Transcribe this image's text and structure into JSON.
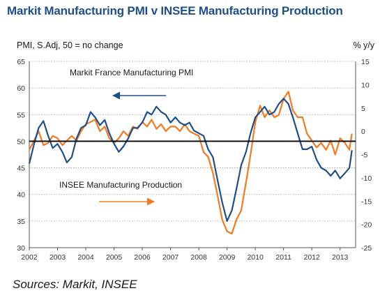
{
  "title": "Markit Manufacturing PMI v INSEE Manufacturing Production",
  "left_unit": "PMI, S.Adj, 50 = no change",
  "right_unit": "% y/y",
  "source": "Sources: Markit, INSEE",
  "colors": {
    "pmi": "#1f4e8c",
    "production": "#f47a20",
    "title": "#1f4e8c"
  },
  "chart_data": {
    "type": "line",
    "x_ticks": [
      "2002",
      "2003",
      "2004",
      "2005",
      "2006",
      "2007",
      "2008",
      "2009",
      "2010",
      "2011",
      "2012",
      "2013"
    ],
    "y_left": {
      "min": 30,
      "max": 65,
      "ticks": [
        30,
        35,
        40,
        45,
        50,
        55,
        60,
        65
      ]
    },
    "y_right": {
      "min": -25,
      "max": 15,
      "ticks": [
        -25,
        -20,
        -15,
        -10,
        -5,
        0,
        5,
        10,
        15
      ]
    },
    "reference_line": 50,
    "grid": "dotted horizontal",
    "annotations": [
      {
        "text": "Markit France Manufacturing PMI",
        "series": "pmi",
        "arrow": "left"
      },
      {
        "text": "INSEE Manufacturing Production",
        "series": "production",
        "arrow": "right"
      }
    ],
    "series": [
      {
        "id": "pmi",
        "axis": "left",
        "x": [
          2002.0,
          2002.17,
          2002.33,
          2002.5,
          2002.67,
          2002.83,
          2003.0,
          2003.17,
          2003.33,
          2003.5,
          2003.67,
          2003.83,
          2004.0,
          2004.17,
          2004.33,
          2004.5,
          2004.67,
          2004.83,
          2005.0,
          2005.17,
          2005.33,
          2005.5,
          2005.67,
          2005.83,
          2006.0,
          2006.17,
          2006.33,
          2006.5,
          2006.67,
          2006.83,
          2007.0,
          2007.17,
          2007.33,
          2007.5,
          2007.67,
          2007.83,
          2008.0,
          2008.17,
          2008.33,
          2008.5,
          2008.67,
          2008.83,
          2009.0,
          2009.17,
          2009.33,
          2009.5,
          2009.67,
          2009.83,
          2010.0,
          2010.17,
          2010.33,
          2010.5,
          2010.67,
          2010.83,
          2011.0,
          2011.17,
          2011.33,
          2011.5,
          2011.67,
          2011.83,
          2012.0,
          2012.17,
          2012.33,
          2012.5,
          2012.67,
          2012.83,
          2013.0,
          2013.17,
          2013.33,
          2013.42
        ],
        "values": [
          45.8,
          49.5,
          52.5,
          53.8,
          51.0,
          48.7,
          49.5,
          48.0,
          46.0,
          47.0,
          50.5,
          52.5,
          53.0,
          55.5,
          54.5,
          53.0,
          54.0,
          51.5,
          49.5,
          48.0,
          49.0,
          50.5,
          52.5,
          52.5,
          53.5,
          55.5,
          55.0,
          56.5,
          55.5,
          55.0,
          53.5,
          54.5,
          53.5,
          53.0,
          53.5,
          52.0,
          51.5,
          51.0,
          48.5,
          47.0,
          42.5,
          38.5,
          35.0,
          37.0,
          41.0,
          45.5,
          48.0,
          51.5,
          54.5,
          55.5,
          56.5,
          55.0,
          55.5,
          57.0,
          58.0,
          57.0,
          54.5,
          51.5,
          48.5,
          48.5,
          49.0,
          46.5,
          45.0,
          44.5,
          43.5,
          44.5,
          43.0,
          44.0,
          45.0,
          48.3
        ]
      },
      {
        "id": "production",
        "axis": "right",
        "x": [
          2002.0,
          2002.17,
          2002.33,
          2002.5,
          2002.67,
          2002.83,
          2003.0,
          2003.17,
          2003.33,
          2003.5,
          2003.67,
          2003.83,
          2004.0,
          2004.17,
          2004.33,
          2004.5,
          2004.67,
          2004.83,
          2005.0,
          2005.17,
          2005.33,
          2005.5,
          2005.67,
          2005.83,
          2006.0,
          2006.17,
          2006.33,
          2006.5,
          2006.67,
          2006.83,
          2007.0,
          2007.17,
          2007.33,
          2007.5,
          2007.67,
          2007.83,
          2008.0,
          2008.17,
          2008.33,
          2008.5,
          2008.67,
          2008.83,
          2009.0,
          2009.17,
          2009.33,
          2009.5,
          2009.67,
          2009.83,
          2010.0,
          2010.17,
          2010.33,
          2010.5,
          2010.67,
          2010.83,
          2011.0,
          2011.17,
          2011.33,
          2011.5,
          2011.67,
          2011.83,
          2012.0,
          2012.17,
          2012.33,
          2012.5,
          2012.67,
          2012.83,
          2013.0,
          2013.17,
          2013.33,
          2013.42
        ],
        "values": [
          -4.0,
          -2.0,
          0.0,
          -3.0,
          -2.5,
          -1.0,
          -1.5,
          -3.0,
          -2.0,
          -1.0,
          -2.0,
          0.0,
          1.5,
          2.0,
          2.5,
          0.0,
          1.0,
          -1.5,
          -2.5,
          -1.5,
          0.0,
          -1.0,
          1.0,
          0.5,
          2.0,
          1.0,
          2.5,
          0.5,
          1.5,
          0.0,
          1.0,
          1.0,
          0.0,
          1.5,
          0.0,
          -0.5,
          -1.0,
          -4.5,
          -5.5,
          -9.0,
          -14.0,
          -19.0,
          -21.5,
          -22.0,
          -19.0,
          -17.0,
          -11.0,
          -5.0,
          2.0,
          5.5,
          3.0,
          4.5,
          3.0,
          3.5,
          7.0,
          8.5,
          4.5,
          3.0,
          3.0,
          -0.5,
          -2.0,
          -3.5,
          -2.5,
          -4.0,
          -2.0,
          -5.0,
          -1.5,
          -2.5,
          -4.0,
          -0.5
        ]
      }
    ]
  }
}
